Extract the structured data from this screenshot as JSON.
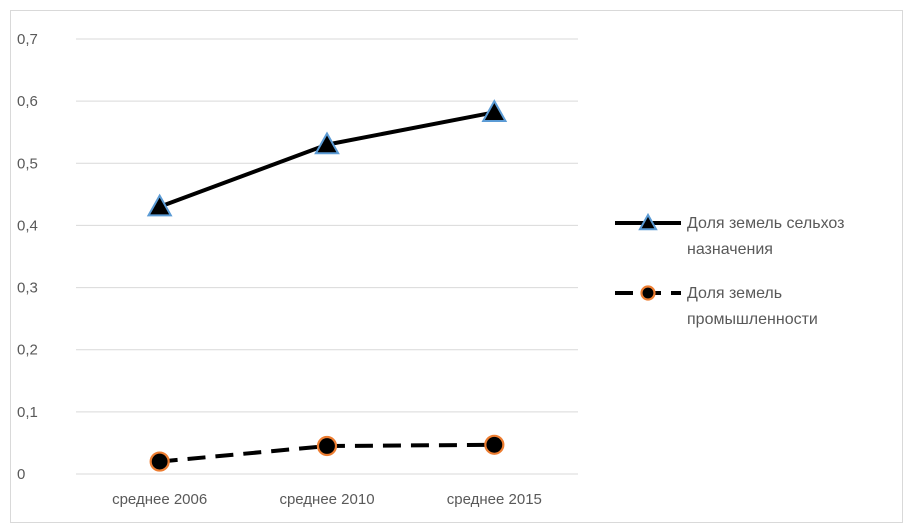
{
  "chart_data": {
    "type": "line",
    "title": "",
    "xlabel": "",
    "ylabel": "",
    "categories": [
      "среднее 2006",
      "среднее 2010",
      "среднее 2015"
    ],
    "ylim": [
      0,
      0.7
    ],
    "yticks": [
      0,
      0.1,
      0.2,
      0.3,
      0.4,
      0.5,
      0.6,
      0.7
    ],
    "ytick_labels": [
      "0",
      "0,1",
      "0,2",
      "0,3",
      "0,4",
      "0,5",
      "0,6",
      "0,7"
    ],
    "grid": true,
    "legend_position": "right",
    "series": [
      {
        "name": "Доля земель сельхоз назначения",
        "legend_lines": [
          "Доля земель сельхоз",
          "назначения"
        ],
        "values": [
          0.43,
          0.53,
          0.582
        ],
        "line_style": "solid",
        "line_color": "#000000",
        "marker": "triangle",
        "marker_fill": "#000000",
        "marker_edge": "#5b9bd5"
      },
      {
        "name": "Доля земель промышленности",
        "legend_lines": [
          "Доля земель",
          "промышленности"
        ],
        "values": [
          0.02,
          0.045,
          0.047
        ],
        "line_style": "dashed",
        "line_color": "#000000",
        "marker": "circle",
        "marker_fill": "#000000",
        "marker_edge": "#ed7d31"
      }
    ],
    "colors": {
      "grid": "#d9d9d9",
      "text": "#595959"
    }
  }
}
